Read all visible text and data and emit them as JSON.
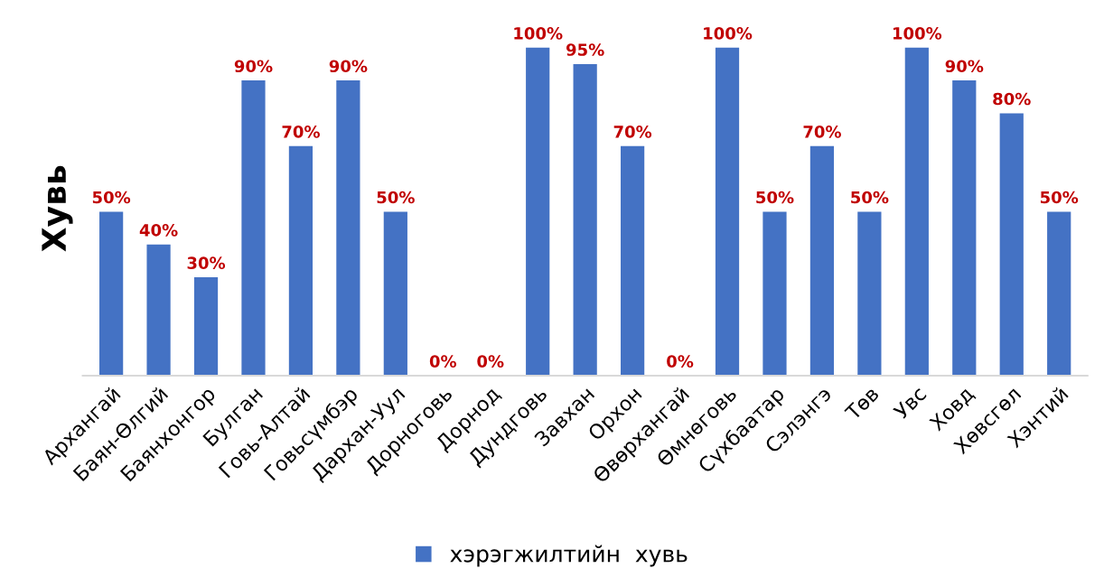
{
  "chart_data": {
    "type": "bar",
    "ylabel": "Хувь",
    "categories": [
      "Архангай",
      "Баян-Өлгий",
      "Баянхонгор",
      "Булган",
      "Говь-Алтай",
      "Говьсүмбэр",
      "Дархан-Уул",
      "Дорноговь",
      "Дорнод",
      "Дундговь",
      "Завхан",
      "Орхон",
      "Өвөрхангай",
      "Өмнөговь",
      "Сүхбаатар",
      "Сэлэнгэ",
      "Төв",
      "Увс",
      "Ховд",
      "Хөвсгөл",
      "Хэнтий"
    ],
    "series": [
      {
        "name": "хэрэгжилтийн  хувь",
        "color": "#4472c4",
        "values": [
          50,
          40,
          30,
          90,
          70,
          90,
          50,
          0,
          0,
          100,
          95,
          70,
          0,
          100,
          50,
          70,
          50,
          100,
          90,
          80,
          50
        ],
        "value_labels": [
          "50%",
          "40%",
          "30%",
          "90%",
          "70%",
          "90%",
          "50%",
          "0%",
          "0%",
          "100%",
          "95%",
          "70%",
          "0%",
          "100%",
          "50%",
          "70%",
          "50%",
          "100%",
          "90%",
          "80%",
          "50%"
        ]
      }
    ],
    "legend": "bottom",
    "grid": false
  }
}
